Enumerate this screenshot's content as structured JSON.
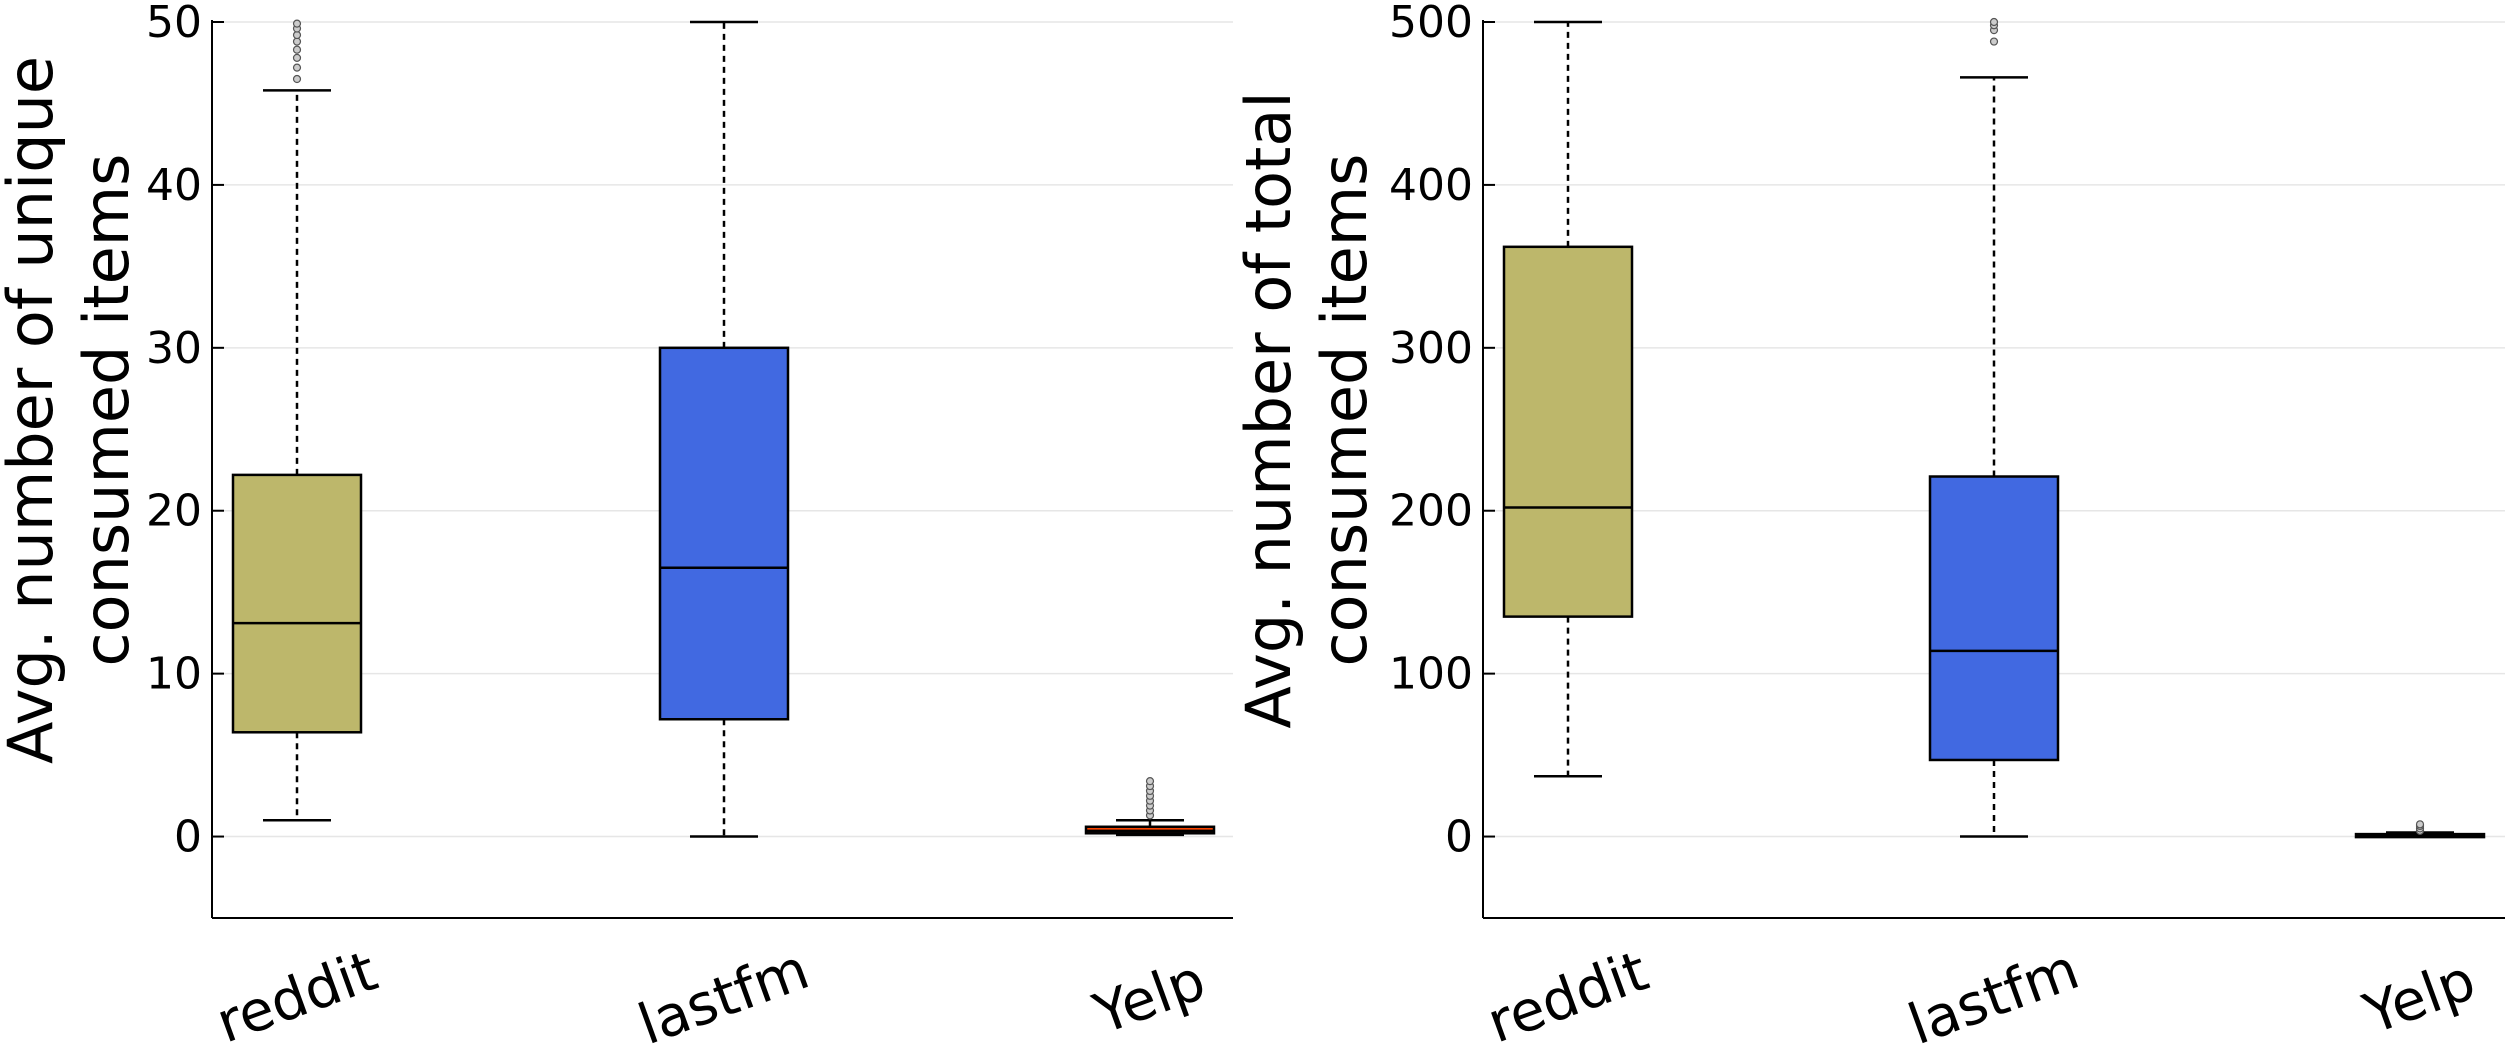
{
  "charts": [
    {
      "type": "box",
      "ylabel_lines": [
        "Avg. number of unique",
        "consumed items"
      ],
      "ylim": [
        -5,
        50
      ],
      "yticks": [
        0,
        10,
        20,
        30,
        40,
        50
      ],
      "grid": true,
      "categories": [
        "reddit",
        "lastfm",
        "Yelp"
      ],
      "boxes": [
        {
          "name": "reddit",
          "whisker_low": 1,
          "q1": 6.4,
          "median": 13.1,
          "q3": 22.2,
          "whisker_high": 45.8,
          "fliers": [
            46.5,
            47.2,
            47.8,
            48.3,
            48.8,
            49.2,
            49.6,
            49.9
          ],
          "color": "#bdb76b"
        },
        {
          "name": "lastfm",
          "whisker_low": 0,
          "q1": 7.2,
          "median": 16.5,
          "q3": 30.0,
          "whisker_high": 50,
          "fliers": [],
          "color": "#4169e1"
        },
        {
          "name": "Yelp",
          "whisker_low": 0.1,
          "q1": 0.2,
          "median": 0.35,
          "q3": 0.6,
          "whisker_high": 1.0,
          "fliers": [
            1.3,
            1.6,
            1.9,
            2.2,
            2.5,
            2.8,
            3.1,
            3.4
          ],
          "color": "#ff4500"
        }
      ]
    },
    {
      "type": "box",
      "ylabel_lines": [
        "Avg. number of total",
        "consumed items"
      ],
      "ylim": [
        -50,
        500
      ],
      "yticks": [
        0,
        100,
        200,
        300,
        400,
        500
      ],
      "grid": true,
      "categories": [
        "reddit",
        "lastfm",
        "Yelp"
      ],
      "boxes": [
        {
          "name": "reddit",
          "whisker_low": 37,
          "q1": 135,
          "median": 202,
          "q3": 362,
          "whisker_high": 500,
          "fliers": [],
          "color": "#bdb76b"
        },
        {
          "name": "lastfm",
          "whisker_low": 0,
          "q1": 47,
          "median": 114,
          "q3": 221,
          "whisker_high": 466,
          "fliers": [
            488,
            495,
            498,
            500
          ],
          "color": "#4169e1"
        },
        {
          "name": "Yelp",
          "whisker_low": 0,
          "q1": 0.3,
          "median": 0.8,
          "q3": 1.5,
          "whisker_high": 2.5,
          "fliers": [
            3.5,
            5,
            6.5,
            7.5
          ],
          "color": "#ff4500"
        }
      ]
    }
  ]
}
